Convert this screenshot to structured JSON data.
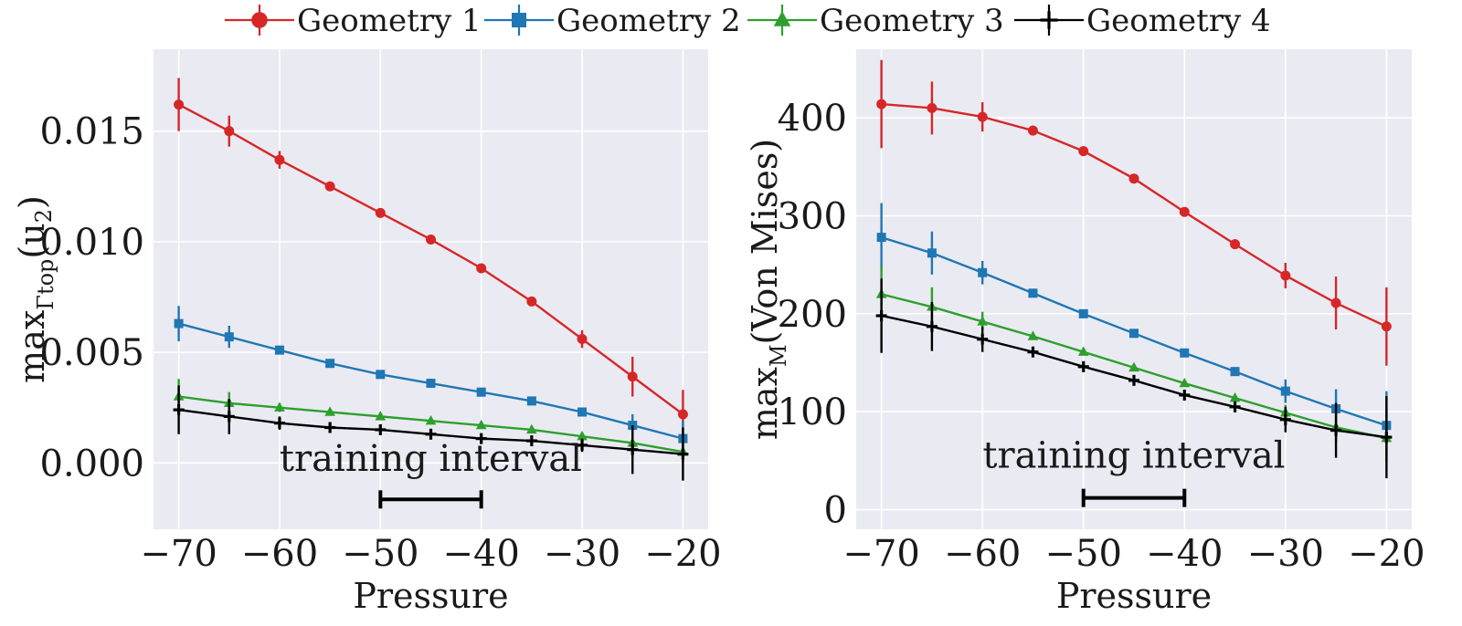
{
  "legend": {
    "items": [
      {
        "label": "Geometry 1",
        "color": "#d62728",
        "marker": "circle"
      },
      {
        "label": "Geometry 2",
        "color": "#1f77b4",
        "marker": "square"
      },
      {
        "label": "Geometry 3",
        "color": "#2ca02c",
        "marker": "triangle"
      },
      {
        "label": "Geometry 4",
        "color": "#000000",
        "marker": "plus"
      }
    ]
  },
  "chart_data": [
    {
      "type": "line",
      "title": "",
      "xlabel": "Pressure",
      "ylabel": "max_{Γ_top}(u_2)",
      "ylabel_main": "max",
      "ylabel_sub": "Γtop",
      "ylabel_tail": "(u",
      "ylabel_tail_sub": "2",
      "ylabel_close": ")",
      "xlim": [
        -72.5,
        -17.5
      ],
      "ylim": [
        -0.003,
        0.0187
      ],
      "xticks": [
        -70,
        -60,
        -50,
        -40,
        -30,
        -20
      ],
      "xtick_labels": [
        "−70",
        "−60",
        "−50",
        "−40",
        "−30",
        "−20"
      ],
      "yticks": [
        0.0,
        0.005,
        0.01,
        0.015
      ],
      "ytick_labels": [
        "0.000",
        "0.005",
        "0.010",
        "0.015"
      ],
      "grid": true,
      "x": [
        -70,
        -65,
        -60,
        -55,
        -50,
        -45,
        -40,
        -35,
        -30,
        -25,
        -20
      ],
      "series": [
        {
          "name": "Geometry 1",
          "color": "#d62728",
          "marker": "circle",
          "values": [
            0.0162,
            0.015,
            0.0137,
            0.0125,
            0.0113,
            0.0101,
            0.0088,
            0.0073,
            0.0056,
            0.0039,
            0.0022
          ],
          "errors": [
            0.0012,
            0.0007,
            0.0004,
            0.0001,
            0.0001,
            0.0001,
            0.0001,
            0.0001,
            0.0004,
            0.0009,
            0.0011
          ]
        },
        {
          "name": "Geometry 2",
          "color": "#1f77b4",
          "marker": "square",
          "values": [
            0.0063,
            0.0057,
            0.0051,
            0.0045,
            0.004,
            0.0036,
            0.0032,
            0.0028,
            0.0023,
            0.0017,
            0.0011
          ],
          "errors": [
            0.0008,
            0.0005,
            0.0002,
            0.0001,
            0.0001,
            0.0001,
            0.0001,
            0.0001,
            0.0002,
            0.0005,
            0.0008
          ]
        },
        {
          "name": "Geometry 3",
          "color": "#2ca02c",
          "marker": "triangle",
          "values": [
            0.003,
            0.0027,
            0.0025,
            0.0023,
            0.0021,
            0.0019,
            0.0017,
            0.0015,
            0.0012,
            0.0009,
            0.0005
          ],
          "errors": [
            0.0008,
            0.0005,
            0.0002,
            0.0001,
            0.0001,
            0.0001,
            0.0001,
            0.0001,
            0.0002,
            0.0004,
            0.0005
          ]
        },
        {
          "name": "Geometry 4",
          "color": "#000000",
          "marker": "plus",
          "values": [
            0.0024,
            0.0021,
            0.0018,
            0.0016,
            0.0015,
            0.0013,
            0.0011,
            0.001,
            0.0008,
            0.0006,
            0.0004
          ],
          "errors": [
            0.0011,
            0.0008,
            0.0003,
            0.0001,
            0.0001,
            0.0001,
            0.0001,
            0.0001,
            0.0003,
            0.0011,
            0.0012
          ]
        }
      ],
      "annotation": {
        "text": "training interval",
        "interval": [
          -50,
          -40
        ],
        "y_text": -0.00035,
        "y_bar": -0.00165
      }
    },
    {
      "type": "line",
      "title": "",
      "xlabel": "Pressure",
      "ylabel": "max_M(Von Mises)",
      "ylabel_main": "max",
      "ylabel_sub": "M",
      "ylabel_tail": "(Von Mises",
      "ylabel_tail_sub": "",
      "ylabel_close": ")",
      "xlim": [
        -72.5,
        -17.5
      ],
      "ylim": [
        -20,
        470
      ],
      "xticks": [
        -70,
        -60,
        -50,
        -40,
        -30,
        -20
      ],
      "xtick_labels": [
        "−70",
        "−60",
        "−50",
        "−40",
        "−30",
        "−20"
      ],
      "yticks": [
        0,
        100,
        200,
        300,
        400
      ],
      "ytick_labels": [
        "0",
        "100",
        "200",
        "300",
        "400"
      ],
      "grid": true,
      "x": [
        -70,
        -65,
        -60,
        -55,
        -50,
        -45,
        -40,
        -35,
        -30,
        -25,
        -20
      ],
      "series": [
        {
          "name": "Geometry 1",
          "color": "#d62728",
          "marker": "circle",
          "values": [
            414,
            410,
            401,
            387,
            366,
            338,
            304,
            271,
            239,
            211,
            187
          ],
          "errors": [
            45,
            27,
            15,
            5,
            3,
            3,
            3,
            5,
            13,
            27,
            40
          ]
        },
        {
          "name": "Geometry 2",
          "color": "#1f77b4",
          "marker": "square",
          "values": [
            278,
            262,
            242,
            221,
            200,
            180,
            160,
            141,
            121,
            103,
            86
          ],
          "errors": [
            35,
            22,
            12,
            3,
            2,
            2,
            2,
            3,
            12,
            20,
            35
          ]
        },
        {
          "name": "Geometry 3",
          "color": "#2ca02c",
          "marker": "triangle",
          "values": [
            220,
            207,
            192,
            177,
            161,
            145,
            129,
            114,
            99,
            84,
            73
          ],
          "errors": [
            28,
            20,
            10,
            3,
            2,
            2,
            2,
            3,
            8,
            15,
            25
          ]
        },
        {
          "name": "Geometry 4",
          "color": "#000000",
          "marker": "plus",
          "values": [
            198,
            187,
            174,
            161,
            146,
            132,
            117,
            105,
            92,
            81,
            74
          ],
          "errors": [
            38,
            25,
            13,
            3,
            2,
            2,
            2,
            3,
            13,
            28,
            42
          ]
        }
      ],
      "annotation": {
        "text": "training interval",
        "interval": [
          -50,
          -40
        ],
        "y_text": 43,
        "y_bar": 12
      }
    }
  ]
}
